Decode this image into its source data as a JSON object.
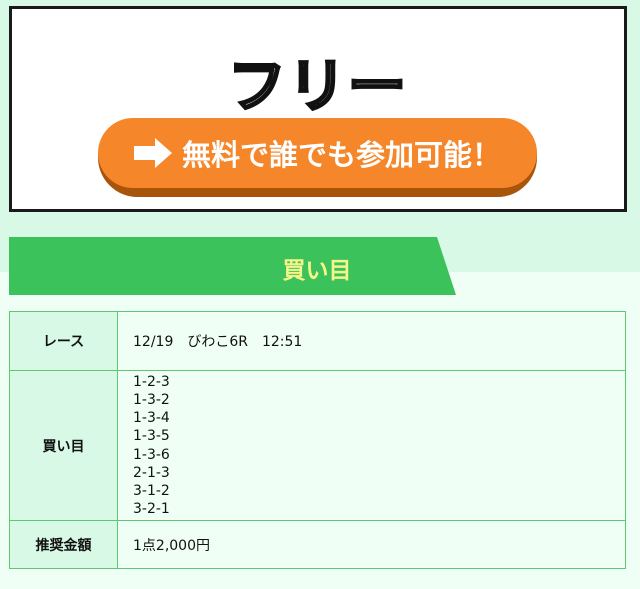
{
  "banner": {
    "title": "フリー",
    "cta_label": "無料で誰でも参加可能！",
    "cta_icon": "arrow-right-icon",
    "colors": {
      "cta": "#f5862a",
      "heading": "#3cc25b"
    }
  },
  "section": {
    "heading": "買い目"
  },
  "table": {
    "race": {
      "label": "レース",
      "value": "12/19　びわこ6R　12:51"
    },
    "picks": {
      "label": "買い目",
      "values": [
        "1-2-3",
        "1-3-2",
        "1-3-4",
        "1-3-5",
        "1-3-6",
        "2-1-3",
        "3-1-2",
        "3-2-1"
      ]
    },
    "amount": {
      "label": "推奨金額",
      "value": "1点2,000円"
    }
  }
}
